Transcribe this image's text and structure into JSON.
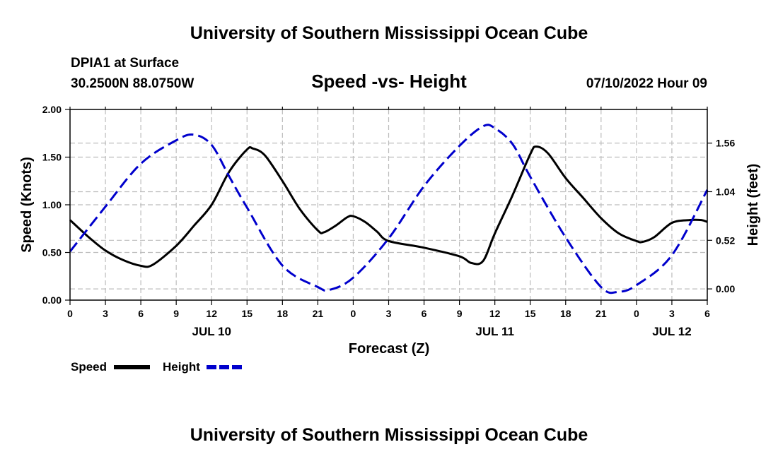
{
  "page_title": "University of Southern Mississippi Ocean Cube",
  "footer_title": "University of Southern Mississippi Ocean Cube",
  "station": {
    "name": "DPIA1 at Surface",
    "coords": "30.2500N  88.0750W"
  },
  "run_time": "07/10/2022 Hour 09",
  "chart_data": {
    "type": "line",
    "title": "Speed -vs- Height",
    "xlabel": "Forecast (Z)",
    "ylabel": "Speed (Knots)",
    "y2label": "Height (feet)",
    "x_unit": "hours from 00Z Jul 10",
    "xlim": [
      0,
      54
    ],
    "ylim": [
      0,
      2.0
    ],
    "y2lim": [
      -0.12,
      1.92
    ],
    "grid": true,
    "x_ticks": [
      0,
      3,
      6,
      9,
      12,
      15,
      18,
      21,
      24,
      27,
      30,
      33,
      36,
      39,
      42,
      45,
      48,
      51,
      54
    ],
    "x_tick_labels": [
      "0",
      "3",
      "6",
      "9",
      "12",
      "15",
      "18",
      "21",
      "0",
      "3",
      "6",
      "9",
      "12",
      "15",
      "18",
      "21",
      "0",
      "3",
      "6"
    ],
    "y_ticks": [
      0,
      0.5,
      1.0,
      1.5,
      2.0
    ],
    "y_tick_labels": [
      "0.00",
      "0.50",
      "1.00",
      "1.50",
      "2.00"
    ],
    "y2_ticks": [
      0,
      0.52,
      1.04,
      1.56
    ],
    "y2_tick_labels": [
      "0.00",
      "0.52",
      "1.04",
      "1.56"
    ],
    "day_labels": [
      {
        "x": 12,
        "label": "JUL 10"
      },
      {
        "x": 36,
        "label": "JUL 11"
      },
      {
        "x": 51,
        "label": "JUL 12"
      }
    ],
    "series": [
      {
        "name": "Speed",
        "axis": "left",
        "color": "#000000",
        "dash": "solid",
        "x": [
          0,
          1.5,
          3,
          4.5,
          6,
          7,
          9,
          10.5,
          12,
          13.5,
          15,
          15.5,
          16.5,
          18,
          19.5,
          21,
          21.5,
          22.5,
          23.5,
          24,
          25,
          26,
          27,
          30,
          33,
          34,
          35,
          36,
          37.5,
          39,
          39.5,
          40.5,
          42,
          43.5,
          45,
          46.5,
          48,
          48.5,
          49.5,
          51,
          52.5,
          53.5,
          54
        ],
        "values": [
          0.84,
          0.67,
          0.52,
          0.42,
          0.36,
          0.37,
          0.57,
          0.78,
          1.0,
          1.35,
          1.58,
          1.59,
          1.52,
          1.25,
          0.95,
          0.73,
          0.71,
          0.78,
          0.87,
          0.88,
          0.82,
          0.72,
          0.62,
          0.55,
          0.46,
          0.39,
          0.41,
          0.7,
          1.1,
          1.53,
          1.61,
          1.54,
          1.28,
          1.07,
          0.86,
          0.7,
          0.62,
          0.61,
          0.66,
          0.81,
          0.84,
          0.84,
          0.82
        ]
      },
      {
        "name": "Height",
        "axis": "right",
        "color": "#0000cc",
        "dash": "dashed",
        "x": [
          0,
          3,
          6,
          9,
          10.5,
          12,
          13.5,
          15,
          18,
          21,
          22,
          24,
          27,
          30,
          33,
          35,
          36,
          37.5,
          39,
          42,
          45,
          46.5,
          48,
          51,
          54
        ],
        "values": [
          0.4,
          0.88,
          1.34,
          1.59,
          1.65,
          1.54,
          1.2,
          0.87,
          0.25,
          0.02,
          -0.01,
          0.12,
          0.54,
          1.1,
          1.53,
          1.74,
          1.72,
          1.55,
          1.2,
          0.55,
          0.02,
          -0.03,
          0.04,
          0.36,
          1.06
        ]
      }
    ],
    "legend": [
      {
        "label": "Speed",
        "color": "#000000",
        "dash": "solid"
      },
      {
        "label": "Height",
        "color": "#0000cc",
        "dash": "dashed"
      }
    ],
    "legend_position": "bottom-left"
  }
}
